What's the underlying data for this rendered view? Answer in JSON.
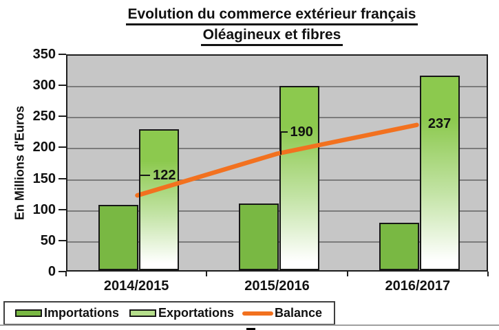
{
  "title": {
    "line1": "Evolution du commerce extérieur français",
    "line2": "Oléagineux et fibres"
  },
  "chart_data": {
    "type": "bar",
    "categories": [
      "2014/2015",
      "2015/2016",
      "2016/2017"
    ],
    "series": [
      {
        "name": "Importations",
        "type": "bar",
        "values": [
          105,
          107,
          76
        ],
        "color": "#79B843"
      },
      {
        "name": "Exportations",
        "type": "bar",
        "values": [
          227,
          297,
          313
        ],
        "color_top": "#8CC94E",
        "color_bottom": "#FFFFFF"
      },
      {
        "name": "Balance",
        "type": "line",
        "values": [
          122,
          190,
          237
        ],
        "color": "#F2711F",
        "data_labels": [
          "122",
          "190",
          "237"
        ]
      }
    ],
    "ylabel": "En Millions d'Euros",
    "ylim": [
      0,
      350
    ],
    "yticks": [
      0,
      50,
      100,
      150,
      200,
      250,
      300,
      350
    ],
    "grid": true,
    "plot_background": "#C6C6C6",
    "gridline_color": "#7b7b7b",
    "legend_position": "bottom"
  },
  "legend": {
    "items": [
      {
        "label": "Importations",
        "swatch_color": "#79B843",
        "swatch_type": "bar"
      },
      {
        "label": "Exportations",
        "swatch_color": "#B5DE8B",
        "swatch_type": "bar"
      },
      {
        "label": "Balance",
        "swatch_color": "#F2711F",
        "swatch_type": "line"
      }
    ]
  }
}
